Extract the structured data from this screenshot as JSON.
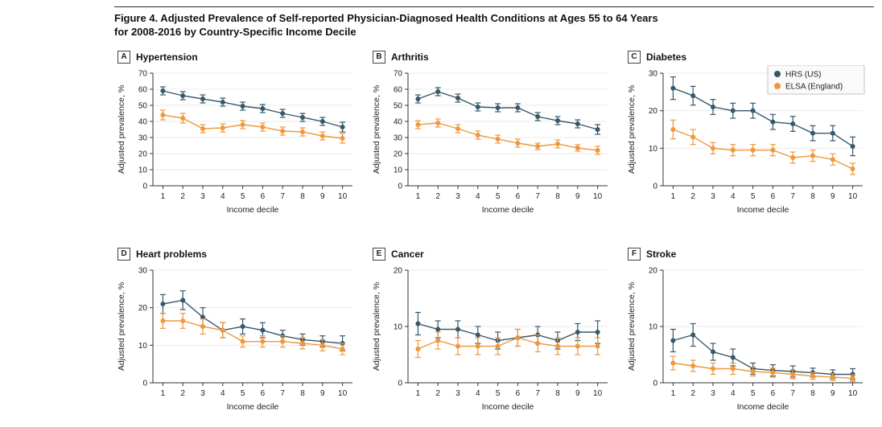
{
  "figure": {
    "title_line1": "Figure 4. Adjusted Prevalence of Self-reported Physician-Diagnosed Health Conditions at Ages 55 to 64 Years",
    "title_line2": "for 2008-2016 by Country-Specific Income Decile"
  },
  "colors": {
    "hrs": "#36586b",
    "elsa": "#f0973c"
  },
  "legend": {
    "position": "top-right-panel-C",
    "items": [
      {
        "label": "HRS (US)",
        "color_key": "hrs"
      },
      {
        "label": "ELSA (England)",
        "color_key": "elsa"
      }
    ]
  },
  "chart_data": [
    {
      "type": "line",
      "letter": "A",
      "title": "Hypertension",
      "xlabel": "Income decile",
      "ylabel": "Adjusted prevalence, %",
      "x": [
        1,
        2,
        3,
        4,
        5,
        6,
        7,
        8,
        9,
        10
      ],
      "ylim": [
        0,
        70
      ],
      "yticks": [
        0,
        10,
        20,
        30,
        40,
        50,
        60,
        70
      ],
      "grid": true,
      "show_legend": false,
      "series": [
        {
          "name": "HRS (US)",
          "color_key": "hrs",
          "values": [
            59,
            56,
            54,
            52,
            49.5,
            48,
            45,
            42.5,
            40,
            36.5
          ],
          "errors": [
            2.5,
            2.5,
            2.5,
            2.5,
            2.5,
            2.5,
            2.5,
            2.5,
            2.5,
            3
          ]
        },
        {
          "name": "ELSA (England)",
          "color_key": "elsa",
          "values": [
            44,
            42,
            35.5,
            36,
            38,
            36.5,
            34,
            33.5,
            31,
            29.5
          ],
          "errors": [
            3,
            3,
            2.5,
            2.5,
            2.5,
            2.5,
            2.5,
            2.5,
            2.5,
            3
          ]
        }
      ]
    },
    {
      "type": "line",
      "letter": "B",
      "title": "Arthritis",
      "xlabel": "Income decile",
      "ylabel": "Adjusted prevalence, %",
      "x": [
        1,
        2,
        3,
        4,
        5,
        6,
        7,
        8,
        9,
        10
      ],
      "ylim": [
        0,
        70
      ],
      "yticks": [
        0,
        10,
        20,
        30,
        40,
        50,
        60,
        70
      ],
      "grid": true,
      "show_legend": false,
      "series": [
        {
          "name": "HRS (US)",
          "color_key": "hrs",
          "values": [
            54,
            58.5,
            54.5,
            49,
            48.5,
            48.5,
            43,
            40.5,
            38.5,
            35
          ],
          "errors": [
            2.5,
            2.5,
            2.5,
            2.5,
            2.5,
            2.5,
            2.5,
            2.5,
            2.5,
            3
          ]
        },
        {
          "name": "ELSA (England)",
          "color_key": "elsa",
          "values": [
            38,
            39,
            35.5,
            31.5,
            29,
            26.5,
            24.5,
            26,
            23.5,
            22
          ],
          "errors": [
            2.5,
            2.5,
            2.5,
            2.5,
            2.5,
            2.5,
            2,
            2.5,
            2,
            2.5
          ]
        }
      ]
    },
    {
      "type": "line",
      "letter": "C",
      "title": "Diabetes",
      "xlabel": "Income decile",
      "ylabel": "Adjusted prevalence, %",
      "x": [
        1,
        2,
        3,
        4,
        5,
        6,
        7,
        8,
        9,
        10
      ],
      "ylim": [
        0,
        30
      ],
      "yticks": [
        0,
        10,
        20,
        30
      ],
      "grid": true,
      "show_legend": true,
      "series": [
        {
          "name": "HRS (US)",
          "color_key": "hrs",
          "values": [
            26,
            24,
            21,
            20,
            20,
            17,
            16.5,
            14,
            14,
            10.5
          ],
          "errors": [
            3,
            2.5,
            2,
            2,
            2,
            2,
            2,
            2,
            2,
            2.5
          ]
        },
        {
          "name": "ELSA (England)",
          "color_key": "elsa",
          "values": [
            15,
            13,
            10,
            9.5,
            9.5,
            9.5,
            7.5,
            8,
            7,
            4.5
          ],
          "errors": [
            2.5,
            2,
            1.5,
            1.5,
            1.5,
            1.5,
            1.5,
            1.5,
            1.5,
            1.5
          ]
        }
      ]
    },
    {
      "type": "line",
      "letter": "D",
      "title": "Heart problems",
      "xlabel": "Income decile",
      "ylabel": "Adjusted prevalence, %",
      "x": [
        1,
        2,
        3,
        4,
        5,
        6,
        7,
        8,
        9,
        10
      ],
      "ylim": [
        0,
        30
      ],
      "yticks": [
        0,
        10,
        20,
        30
      ],
      "grid": true,
      "show_legend": false,
      "series": [
        {
          "name": "HRS (US)",
          "color_key": "hrs",
          "values": [
            21,
            22,
            17.5,
            14,
            15,
            14,
            12.5,
            11.5,
            11,
            10.5
          ],
          "errors": [
            2.5,
            2.5,
            2.5,
            2,
            2,
            2,
            1.5,
            1.5,
            1.5,
            2
          ]
        },
        {
          "name": "ELSA (England)",
          "color_key": "elsa",
          "values": [
            16.5,
            16.5,
            15,
            14,
            11,
            11,
            11,
            10.5,
            10,
            9
          ],
          "errors": [
            2,
            2,
            2,
            2,
            1.5,
            1.5,
            1.5,
            1.5,
            1.5,
            1.5
          ]
        }
      ]
    },
    {
      "type": "line",
      "letter": "E",
      "title": "Cancer",
      "xlabel": "Income decile",
      "ylabel": "Adjusted prevalence, %",
      "x": [
        1,
        2,
        3,
        4,
        5,
        6,
        7,
        8,
        9,
        10
      ],
      "ylim": [
        0,
        20
      ],
      "yticks": [
        0,
        10,
        20
      ],
      "grid": true,
      "show_legend": false,
      "series": [
        {
          "name": "HRS (US)",
          "color_key": "hrs",
          "values": [
            10.5,
            9.5,
            9.5,
            8.5,
            7.5,
            8,
            8.5,
            7.5,
            9,
            9
          ],
          "errors": [
            2,
            1.5,
            1.5,
            1.5,
            1.5,
            1.5,
            1.5,
            1.5,
            1.5,
            2
          ]
        },
        {
          "name": "ELSA (England)",
          "color_key": "elsa",
          "values": [
            6,
            7.5,
            6.5,
            6.5,
            6.5,
            8,
            7,
            6.5,
            6.5,
            6.5
          ],
          "errors": [
            1.5,
            1.5,
            1.5,
            1.5,
            1.5,
            1.5,
            1.5,
            1.5,
            1.5,
            1.5
          ]
        }
      ]
    },
    {
      "type": "line",
      "letter": "F",
      "title": "Stroke",
      "xlabel": "Income decile",
      "ylabel": "Adjusted prevalence, %",
      "x": [
        1,
        2,
        3,
        4,
        5,
        6,
        7,
        8,
        9,
        10
      ],
      "ylim": [
        0,
        20
      ],
      "yticks": [
        0,
        10,
        20
      ],
      "grid": true,
      "show_legend": false,
      "series": [
        {
          "name": "HRS (US)",
          "color_key": "hrs",
          "values": [
            7.5,
            8.5,
            5.5,
            4.5,
            2.5,
            2.2,
            2,
            1.8,
            1.5,
            1.5
          ],
          "errors": [
            2,
            2,
            1.5,
            1.5,
            1,
            1,
            1,
            0.8,
            0.8,
            1
          ]
        },
        {
          "name": "ELSA (England)",
          "color_key": "elsa",
          "values": [
            3.5,
            3,
            2.5,
            2.5,
            2,
            1.8,
            1.5,
            1.2,
            1,
            0.8
          ],
          "errors": [
            1.2,
            1,
            1,
            1,
            0.8,
            0.8,
            0.8,
            0.6,
            0.6,
            0.6
          ]
        }
      ]
    }
  ]
}
